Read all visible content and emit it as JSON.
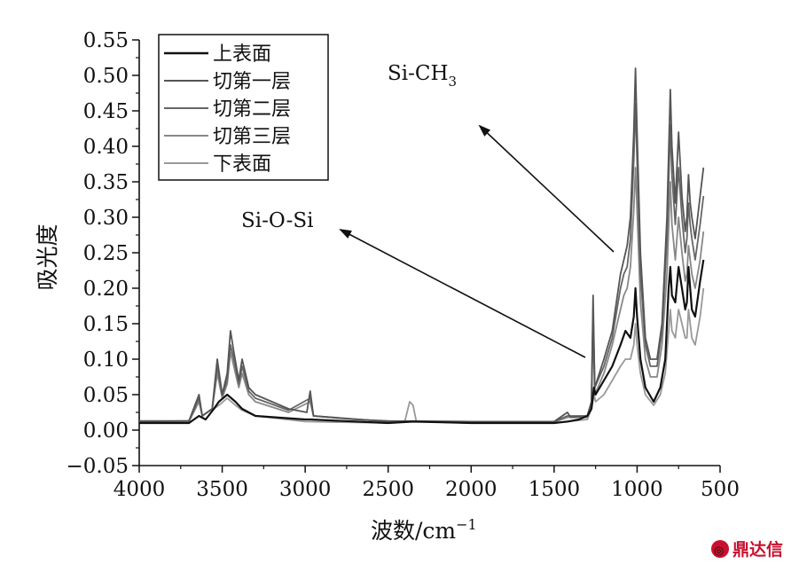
{
  "chart_data": {
    "type": "line",
    "xlabel": "波数/cm",
    "xlabel_exp": "−1",
    "ylabel": "吸光度",
    "x_reversed": true,
    "xlim": [
      4000,
      500
    ],
    "ylim": [
      -0.05,
      0.55
    ],
    "x_ticks": [
      4000,
      3500,
      3000,
      2500,
      2000,
      1500,
      1000,
      500
    ],
    "x_tick_labels": [
      "4000",
      "3500",
      "3000",
      "2500",
      "2000",
      "1500",
      "1000",
      "500"
    ],
    "y_ticks": [
      -0.05,
      0,
      0.05,
      0.1,
      0.15,
      0.2,
      0.25,
      0.3,
      0.35,
      0.4,
      0.45,
      0.5,
      0.55
    ],
    "y_tick_labels": [
      "−0.05",
      "0.00",
      "0.05",
      "0.10",
      "0.15",
      "0.20",
      "0.25",
      "0.30",
      "0.35",
      "0.40",
      "0.45",
      "0.50",
      "0.55"
    ],
    "grid": false,
    "legend_position": "top-left",
    "series": [
      {
        "name": "上表面",
        "color": "#111111",
        "points": [
          [
            4000,
            0.01
          ],
          [
            3700,
            0.01
          ],
          [
            3640,
            0.02
          ],
          [
            3600,
            0.015
          ],
          [
            3550,
            0.03
          ],
          [
            3520,
            0.04
          ],
          [
            3470,
            0.05
          ],
          [
            3420,
            0.04
          ],
          [
            3380,
            0.03
          ],
          [
            3300,
            0.02
          ],
          [
            3000,
            0.015
          ],
          [
            2970,
            0.015
          ],
          [
            2500,
            0.01
          ],
          [
            2350,
            0.012
          ],
          [
            2000,
            0.01
          ],
          [
            1500,
            0.01
          ],
          [
            1420,
            0.012
          ],
          [
            1350,
            0.015
          ],
          [
            1300,
            0.02
          ],
          [
            1275,
            0.03
          ],
          [
            1260,
            0.06
          ],
          [
            1250,
            0.05
          ],
          [
            1200,
            0.07
          ],
          [
            1150,
            0.09
          ],
          [
            1100,
            0.12
          ],
          [
            1070,
            0.14
          ],
          [
            1040,
            0.13
          ],
          [
            1020,
            0.16
          ],
          [
            1010,
            0.2
          ],
          [
            1000,
            0.16
          ],
          [
            980,
            0.1
          ],
          [
            950,
            0.06
          ],
          [
            900,
            0.04
          ],
          [
            860,
            0.06
          ],
          [
            830,
            0.1
          ],
          [
            810,
            0.2
          ],
          [
            800,
            0.23
          ],
          [
            790,
            0.19
          ],
          [
            770,
            0.18
          ],
          [
            750,
            0.23
          ],
          [
            730,
            0.2
          ],
          [
            710,
            0.17
          ],
          [
            700,
            0.18
          ],
          [
            690,
            0.23
          ],
          [
            680,
            0.2
          ],
          [
            670,
            0.17
          ],
          [
            650,
            0.16
          ],
          [
            620,
            0.21
          ],
          [
            600,
            0.24
          ]
        ]
      },
      {
        "name": "切第一层",
        "color": "#555555",
        "points": [
          [
            4000,
            0.012
          ],
          [
            3700,
            0.013
          ],
          [
            3640,
            0.05
          ],
          [
            3620,
            0.02
          ],
          [
            3560,
            0.03
          ],
          [
            3530,
            0.1
          ],
          [
            3500,
            0.05
          ],
          [
            3470,
            0.08
          ],
          [
            3450,
            0.14
          ],
          [
            3430,
            0.11
          ],
          [
            3400,
            0.07
          ],
          [
            3380,
            0.1
          ],
          [
            3340,
            0.06
          ],
          [
            3300,
            0.05
          ],
          [
            3100,
            0.03
          ],
          [
            2990,
            0.025
          ],
          [
            2970,
            0.055
          ],
          [
            2950,
            0.02
          ],
          [
            2700,
            0.015
          ],
          [
            2500,
            0.013
          ],
          [
            2000,
            0.012
          ],
          [
            1500,
            0.012
          ],
          [
            1420,
            0.025
          ],
          [
            1400,
            0.018
          ],
          [
            1300,
            0.02
          ],
          [
            1275,
            0.04
          ],
          [
            1265,
            0.19
          ],
          [
            1255,
            0.06
          ],
          [
            1200,
            0.1
          ],
          [
            1150,
            0.14
          ],
          [
            1100,
            0.22
          ],
          [
            1080,
            0.24
          ],
          [
            1060,
            0.26
          ],
          [
            1040,
            0.3
          ],
          [
            1020,
            0.42
          ],
          [
            1010,
            0.51
          ],
          [
            1000,
            0.42
          ],
          [
            980,
            0.25
          ],
          [
            950,
            0.13
          ],
          [
            920,
            0.1
          ],
          [
            880,
            0.1
          ],
          [
            850,
            0.15
          ],
          [
            820,
            0.3
          ],
          [
            800,
            0.48
          ],
          [
            790,
            0.4
          ],
          [
            770,
            0.32
          ],
          [
            750,
            0.42
          ],
          [
            730,
            0.33
          ],
          [
            710,
            0.28
          ],
          [
            700,
            0.3
          ],
          [
            690,
            0.36
          ],
          [
            680,
            0.32
          ],
          [
            670,
            0.3
          ],
          [
            650,
            0.27
          ],
          [
            620,
            0.33
          ],
          [
            600,
            0.37
          ]
        ]
      },
      {
        "name": "切第二层",
        "color": "#666666",
        "points": [
          [
            4000,
            0.013
          ],
          [
            3700,
            0.013
          ],
          [
            3640,
            0.045
          ],
          [
            3620,
            0.02
          ],
          [
            3560,
            0.03
          ],
          [
            3530,
            0.09
          ],
          [
            3500,
            0.05
          ],
          [
            3470,
            0.07
          ],
          [
            3450,
            0.12
          ],
          [
            3430,
            0.1
          ],
          [
            3400,
            0.065
          ],
          [
            3380,
            0.09
          ],
          [
            3340,
            0.055
          ],
          [
            3300,
            0.045
          ],
          [
            3100,
            0.028
          ],
          [
            2970,
            0.045
          ],
          [
            2950,
            0.02
          ],
          [
            2500,
            0.012
          ],
          [
            2000,
            0.012
          ],
          [
            1500,
            0.012
          ],
          [
            1420,
            0.02
          ],
          [
            1300,
            0.02
          ],
          [
            1275,
            0.04
          ],
          [
            1265,
            0.17
          ],
          [
            1255,
            0.06
          ],
          [
            1200,
            0.09
          ],
          [
            1150,
            0.13
          ],
          [
            1100,
            0.2
          ],
          [
            1080,
            0.22
          ],
          [
            1060,
            0.23
          ],
          [
            1040,
            0.27
          ],
          [
            1020,
            0.38
          ],
          [
            1010,
            0.46
          ],
          [
            1000,
            0.38
          ],
          [
            980,
            0.22
          ],
          [
            950,
            0.12
          ],
          [
            920,
            0.09
          ],
          [
            880,
            0.09
          ],
          [
            850,
            0.14
          ],
          [
            820,
            0.27
          ],
          [
            800,
            0.43
          ],
          [
            790,
            0.36
          ],
          [
            770,
            0.29
          ],
          [
            750,
            0.37
          ],
          [
            730,
            0.3
          ],
          [
            710,
            0.25
          ],
          [
            700,
            0.27
          ],
          [
            690,
            0.32
          ],
          [
            680,
            0.29
          ],
          [
            670,
            0.27
          ],
          [
            650,
            0.24
          ],
          [
            620,
            0.29
          ],
          [
            600,
            0.33
          ]
        ]
      },
      {
        "name": "切第三层",
        "color": "#888888",
        "points": [
          [
            4000,
            0.012
          ],
          [
            3700,
            0.012
          ],
          [
            3640,
            0.04
          ],
          [
            3620,
            0.02
          ],
          [
            3560,
            0.03
          ],
          [
            3530,
            0.08
          ],
          [
            3500,
            0.045
          ],
          [
            3470,
            0.065
          ],
          [
            3450,
            0.11
          ],
          [
            3430,
            0.09
          ],
          [
            3400,
            0.06
          ],
          [
            3380,
            0.08
          ],
          [
            3340,
            0.05
          ],
          [
            3300,
            0.04
          ],
          [
            3100,
            0.025
          ],
          [
            2970,
            0.04
          ],
          [
            2950,
            0.02
          ],
          [
            2500,
            0.012
          ],
          [
            2000,
            0.011
          ],
          [
            1500,
            0.011
          ],
          [
            1420,
            0.018
          ],
          [
            1300,
            0.018
          ],
          [
            1275,
            0.035
          ],
          [
            1265,
            0.15
          ],
          [
            1255,
            0.05
          ],
          [
            1200,
            0.08
          ],
          [
            1150,
            0.12
          ],
          [
            1100,
            0.17
          ],
          [
            1080,
            0.19
          ],
          [
            1060,
            0.2
          ],
          [
            1040,
            0.23
          ],
          [
            1020,
            0.31
          ],
          [
            1010,
            0.37
          ],
          [
            1000,
            0.31
          ],
          [
            980,
            0.18
          ],
          [
            950,
            0.1
          ],
          [
            920,
            0.075
          ],
          [
            880,
            0.075
          ],
          [
            850,
            0.12
          ],
          [
            820,
            0.22
          ],
          [
            800,
            0.35
          ],
          [
            790,
            0.29
          ],
          [
            770,
            0.24
          ],
          [
            750,
            0.3
          ],
          [
            730,
            0.25
          ],
          [
            710,
            0.21
          ],
          [
            700,
            0.22
          ],
          [
            690,
            0.26
          ],
          [
            680,
            0.24
          ],
          [
            670,
            0.22
          ],
          [
            650,
            0.2
          ],
          [
            620,
            0.24
          ],
          [
            600,
            0.28
          ]
        ]
      },
      {
        "name": "下表面",
        "color": "#999999",
        "points": [
          [
            4000,
            0.01
          ],
          [
            3700,
            0.01
          ],
          [
            3640,
            0.02
          ],
          [
            3600,
            0.015
          ],
          [
            3550,
            0.03
          ],
          [
            3520,
            0.035
          ],
          [
            3470,
            0.045
          ],
          [
            3420,
            0.035
          ],
          [
            3380,
            0.028
          ],
          [
            3300,
            0.02
          ],
          [
            3000,
            0.012
          ],
          [
            2500,
            0.01
          ],
          [
            2400,
            0.012
          ],
          [
            2370,
            0.04
          ],
          [
            2350,
            0.035
          ],
          [
            2330,
            0.012
          ],
          [
            2000,
            0.01
          ],
          [
            1500,
            0.01
          ],
          [
            1420,
            0.012
          ],
          [
            1300,
            0.015
          ],
          [
            1275,
            0.03
          ],
          [
            1260,
            0.05
          ],
          [
            1250,
            0.04
          ],
          [
            1200,
            0.05
          ],
          [
            1150,
            0.07
          ],
          [
            1100,
            0.09
          ],
          [
            1070,
            0.1
          ],
          [
            1040,
            0.1
          ],
          [
            1020,
            0.12
          ],
          [
            1010,
            0.15
          ],
          [
            1000,
            0.12
          ],
          [
            980,
            0.08
          ],
          [
            950,
            0.05
          ],
          [
            900,
            0.035
          ],
          [
            860,
            0.05
          ],
          [
            830,
            0.08
          ],
          [
            810,
            0.14
          ],
          [
            800,
            0.17
          ],
          [
            790,
            0.14
          ],
          [
            770,
            0.13
          ],
          [
            750,
            0.17
          ],
          [
            730,
            0.15
          ],
          [
            710,
            0.13
          ],
          [
            700,
            0.13
          ],
          [
            690,
            0.17
          ],
          [
            680,
            0.15
          ],
          [
            670,
            0.13
          ],
          [
            650,
            0.12
          ],
          [
            620,
            0.16
          ],
          [
            600,
            0.2
          ]
        ]
      }
    ],
    "annotations": [
      {
        "text": "Si-CH",
        "sub": "3"
      },
      {
        "text": "Si-O-Si",
        "sub": ""
      }
    ]
  },
  "watermark": {
    "text": "鼎达信",
    "color": "#c8102e"
  }
}
